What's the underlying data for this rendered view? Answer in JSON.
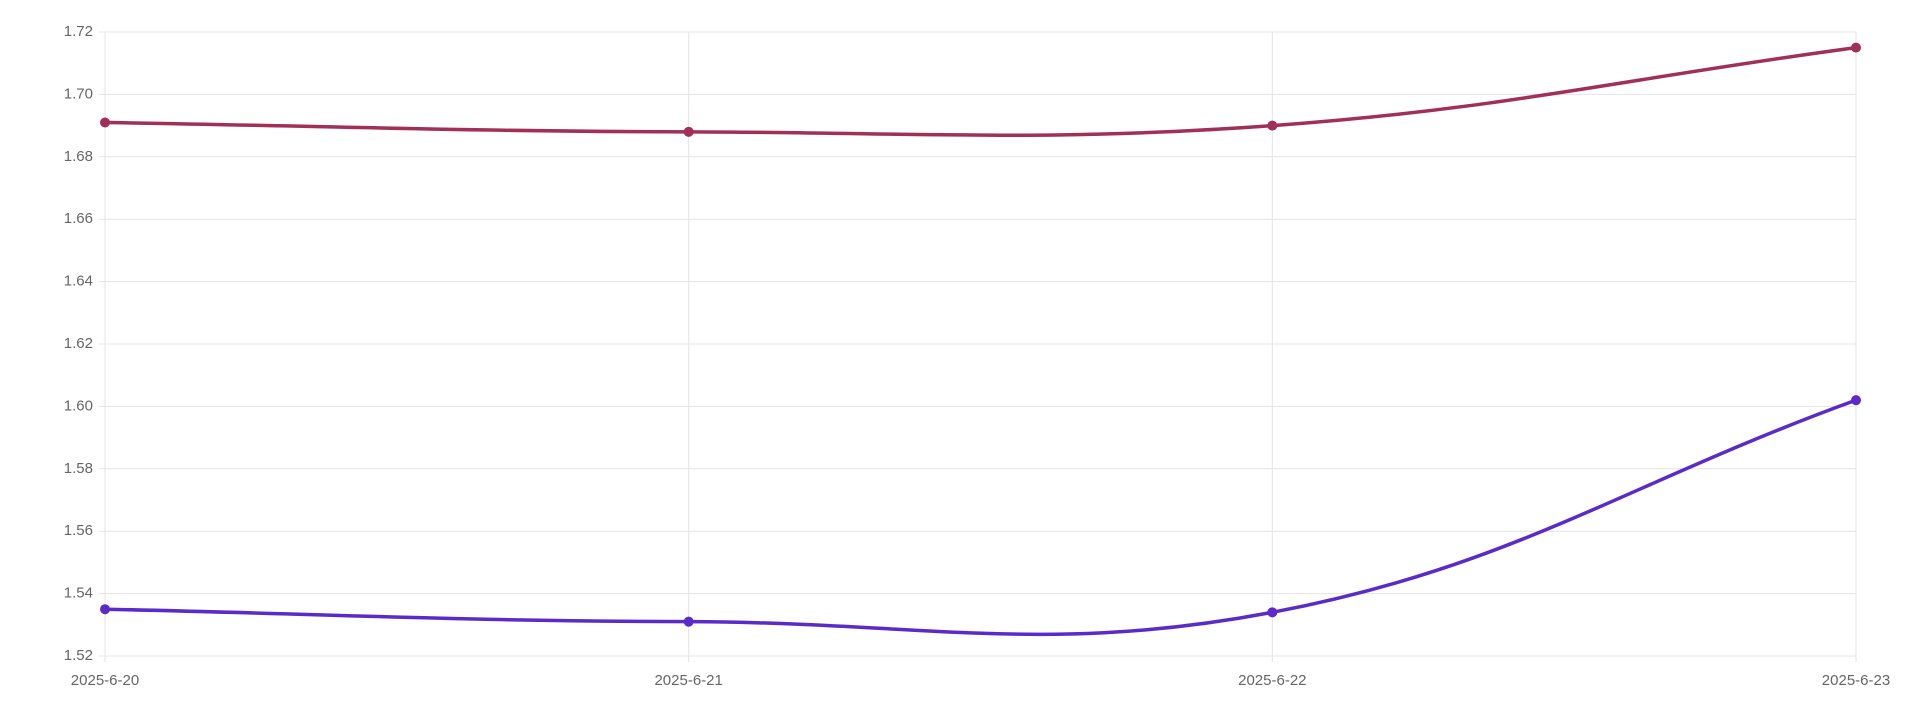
{
  "chart_data": {
    "type": "line",
    "categories": [
      "2025-6-20",
      "2025-6-21",
      "2025-6-22",
      "2025-6-23"
    ],
    "series": [
      {
        "color": "#a22f55",
        "values": [
          1.691,
          1.688,
          1.69,
          1.715
        ]
      },
      {
        "color": "#5a2bc8",
        "values": [
          1.535,
          1.531,
          1.534,
          1.602
        ]
      }
    ],
    "ylim": [
      1.52,
      1.72
    ],
    "yticks": [
      1.52,
      1.54,
      1.56,
      1.58,
      {
        "value": 1.6,
        "label": "1.60"
      },
      1.62,
      1.64,
      1.66,
      1.68,
      {
        "value": 1.7,
        "label": "1.70"
      },
      1.72
    ],
    "grid": true
  }
}
